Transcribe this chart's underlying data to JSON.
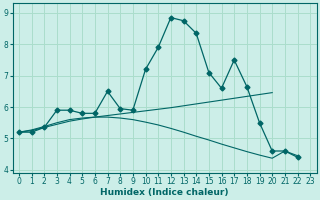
{
  "xlabel": "Humidex (Indice chaleur)",
  "background_color": "#cceee8",
  "grid_color": "#aaddcc",
  "line_color": "#006666",
  "x": [
    0,
    1,
    2,
    3,
    4,
    5,
    6,
    7,
    8,
    9,
    10,
    11,
    12,
    13,
    14,
    15,
    16,
    17,
    18,
    19,
    20,
    21,
    22,
    23
  ],
  "y_main": [
    5.2,
    5.2,
    5.35,
    5.9,
    5.9,
    5.8,
    5.8,
    6.5,
    5.95,
    5.9,
    7.2,
    7.9,
    8.85,
    8.75,
    8.35,
    7.1,
    6.6,
    7.5,
    6.65,
    5.5,
    4.6,
    4.6,
    4.4,
    null
  ],
  "y_trend1": [
    5.2,
    5.25,
    5.35,
    5.45,
    5.55,
    5.62,
    5.68,
    5.73,
    5.78,
    5.83,
    5.88,
    5.93,
    5.98,
    6.04,
    6.1,
    6.16,
    6.22,
    6.28,
    6.34,
    6.4,
    6.46,
    null,
    null,
    null
  ],
  "y_trend2": [
    5.2,
    5.27,
    5.38,
    5.5,
    5.6,
    5.65,
    5.68,
    5.68,
    5.65,
    5.6,
    5.52,
    5.43,
    5.32,
    5.2,
    5.07,
    4.95,
    4.82,
    4.7,
    4.58,
    4.47,
    4.37,
    4.6,
    4.45,
    null
  ],
  "ylim": [
    3.9,
    9.3
  ],
  "xlim": [
    -0.5,
    23.5
  ],
  "yticks": [
    4,
    5,
    6,
    7,
    8,
    9
  ],
  "xticks": [
    0,
    1,
    2,
    3,
    4,
    5,
    6,
    7,
    8,
    9,
    10,
    11,
    12,
    13,
    14,
    15,
    16,
    17,
    18,
    19,
    20,
    21,
    22,
    23
  ],
  "xlabel_fontsize": 6.5,
  "tick_fontsize": 5.5
}
